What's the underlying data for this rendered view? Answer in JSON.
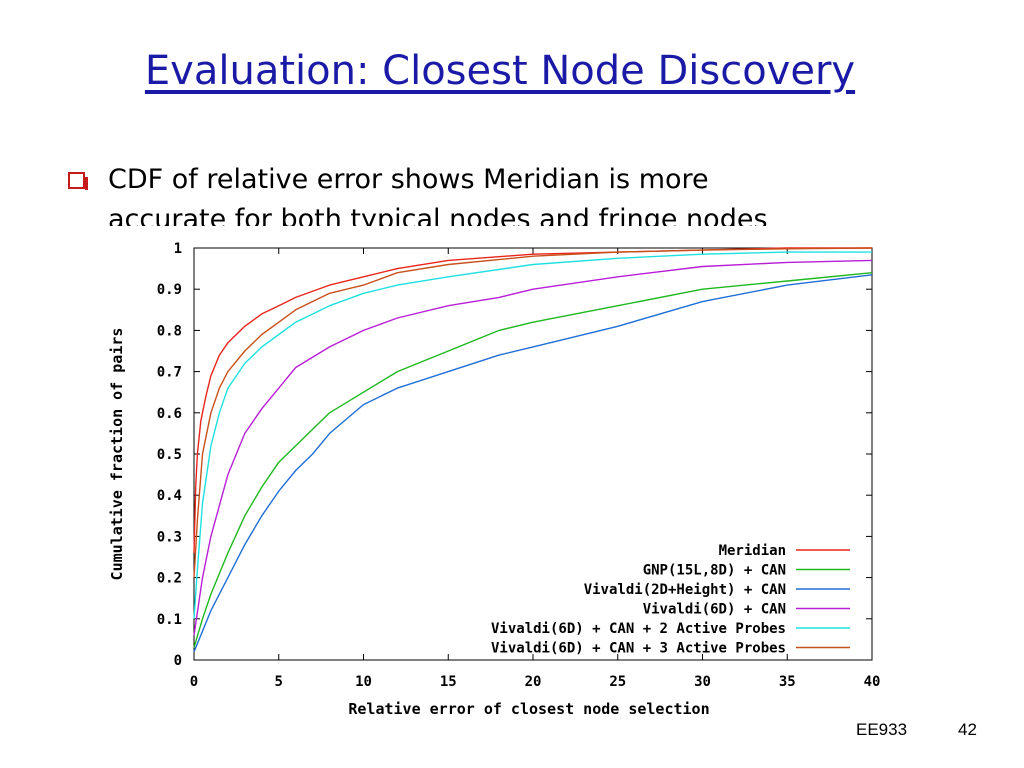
{
  "slide": {
    "title": "Evaluation: Closest Node Discovery",
    "bullet_line1": "CDF of relative error shows Meridian is more",
    "bullet_line2": "accurate for both typical nodes and fringe nodes",
    "footer_course": "EE933",
    "footer_page": "42"
  },
  "colors": {
    "title": "#1a1aa6",
    "bullet": "#c41b1b"
  },
  "chart_data": {
    "type": "line",
    "title": "",
    "xlabel": "Relative error of closest node selection",
    "ylabel": "Cumulative fraction of pairs",
    "xlim": [
      0,
      40
    ],
    "ylim": [
      0,
      1
    ],
    "xticks": [
      "0",
      "5",
      "10",
      "15",
      "20",
      "25",
      "30",
      "35",
      "40"
    ],
    "yticks": [
      "0",
      "0.1",
      "0.2",
      "0.3",
      "0.4",
      "0.5",
      "0.6",
      "0.7",
      "0.8",
      "0.9",
      "1"
    ],
    "legend_position": "bottom-right",
    "grid": false,
    "series": [
      {
        "name": "Meridian",
        "color": "#e8261c",
        "x": [
          0,
          0.1,
          0.2,
          0.4,
          0.7,
          1,
          1.5,
          2,
          3,
          4,
          5,
          6,
          8,
          10,
          12,
          15,
          20,
          25,
          30,
          35,
          40
        ],
        "y": [
          0.26,
          0.42,
          0.5,
          0.58,
          0.64,
          0.69,
          0.74,
          0.77,
          0.81,
          0.84,
          0.86,
          0.88,
          0.91,
          0.93,
          0.95,
          0.97,
          0.985,
          0.99,
          0.995,
          1.0,
          1.0
        ]
      },
      {
        "name": "GNP(15L,8D) + CAN",
        "color": "#1fb81f",
        "x": [
          0,
          0.5,
          1,
          2,
          3,
          4,
          5,
          6,
          7,
          8,
          10,
          12,
          15,
          18,
          20,
          25,
          30,
          35,
          40
        ],
        "y": [
          0.03,
          0.1,
          0.16,
          0.26,
          0.35,
          0.42,
          0.48,
          0.52,
          0.56,
          0.6,
          0.65,
          0.7,
          0.75,
          0.8,
          0.82,
          0.86,
          0.9,
          0.92,
          0.94
        ]
      },
      {
        "name": "Vivaldi(2D+Height) + CAN",
        "color": "#1f6fd6",
        "x": [
          0,
          0.5,
          1,
          2,
          3,
          4,
          5,
          6,
          7,
          8,
          10,
          12,
          15,
          18,
          20,
          25,
          30,
          35,
          40
        ],
        "y": [
          0.02,
          0.07,
          0.12,
          0.2,
          0.28,
          0.35,
          0.41,
          0.46,
          0.5,
          0.55,
          0.62,
          0.66,
          0.7,
          0.74,
          0.76,
          0.81,
          0.87,
          0.91,
          0.935
        ]
      },
      {
        "name": "Vivaldi(6D) + CAN",
        "color": "#b81fd6",
        "x": [
          0,
          0.5,
          1,
          2,
          3,
          4,
          5,
          6,
          8,
          10,
          12,
          15,
          18,
          20,
          25,
          30,
          35,
          40
        ],
        "y": [
          0.06,
          0.2,
          0.3,
          0.45,
          0.55,
          0.61,
          0.66,
          0.71,
          0.76,
          0.8,
          0.83,
          0.86,
          0.88,
          0.9,
          0.93,
          0.955,
          0.965,
          0.97
        ]
      },
      {
        "name": "Vivaldi(6D) + CAN + 2 Active Probes",
        "color": "#1fe0e0",
        "x": [
          0,
          0.2,
          0.5,
          1,
          1.5,
          2,
          3,
          4,
          5,
          6,
          8,
          10,
          12,
          15,
          20,
          25,
          30,
          35,
          40
        ],
        "y": [
          0.1,
          0.22,
          0.38,
          0.52,
          0.6,
          0.66,
          0.72,
          0.76,
          0.79,
          0.82,
          0.86,
          0.89,
          0.91,
          0.93,
          0.96,
          0.975,
          0.985,
          0.99,
          0.99
        ]
      },
      {
        "name": "Vivaldi(6D) + CAN + 3 Active Probes",
        "color": "#c8501c",
        "x": [
          0,
          0.2,
          0.5,
          1,
          1.5,
          2,
          3,
          4,
          5,
          6,
          8,
          10,
          12,
          15,
          20,
          25,
          30,
          35,
          40
        ],
        "y": [
          0.2,
          0.34,
          0.5,
          0.6,
          0.66,
          0.7,
          0.75,
          0.79,
          0.82,
          0.85,
          0.89,
          0.91,
          0.94,
          0.96,
          0.98,
          0.99,
          0.995,
          0.998,
          1.0
        ]
      }
    ]
  }
}
